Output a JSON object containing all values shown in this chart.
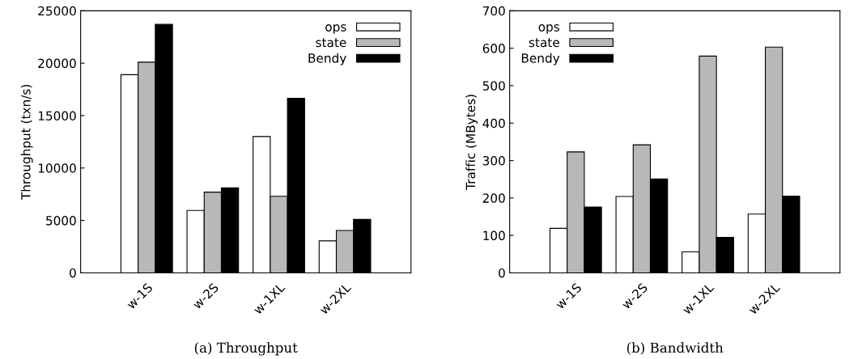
{
  "chart_data": [
    {
      "type": "bar",
      "title": "(a) Throughput",
      "ylabel": "Throughput (txn/s)",
      "categories": [
        "w-1S",
        "w-2S",
        "w-1XL",
        "w-2XL"
      ],
      "series": [
        {
          "name": "ops",
          "color": "#ffffff",
          "values": [
            18900,
            5950,
            13000,
            3050
          ]
        },
        {
          "name": "state",
          "color": "#b8b8b8",
          "values": [
            20100,
            7700,
            7300,
            4050
          ]
        },
        {
          "name": "Bendy",
          "color": "#000000",
          "values": [
            23700,
            8100,
            16650,
            5100
          ]
        }
      ],
      "ylim": [
        0,
        25000
      ],
      "yticks": [
        0,
        5000,
        10000,
        15000,
        20000,
        25000
      ],
      "legend": "top right",
      "grid": false
    },
    {
      "type": "bar",
      "title": "(b) Bandwidth",
      "ylabel": "Traffic (MBytes)",
      "categories": [
        "w-1S",
        "w-2S",
        "w-1XL",
        "w-2XL"
      ],
      "series": [
        {
          "name": "ops",
          "color": "#ffffff",
          "values": [
            119,
            204,
            56,
            157
          ]
        },
        {
          "name": "state",
          "color": "#b8b8b8",
          "values": [
            323,
            342,
            579,
            603
          ]
        },
        {
          "name": "Bendy",
          "color": "#000000",
          "values": [
            176,
            251,
            95,
            205
          ]
        }
      ],
      "ylim": [
        0,
        700
      ],
      "yticks": [
        0,
        100,
        200,
        300,
        400,
        500,
        600,
        700
      ],
      "legend": "top left",
      "grid": false
    }
  ]
}
